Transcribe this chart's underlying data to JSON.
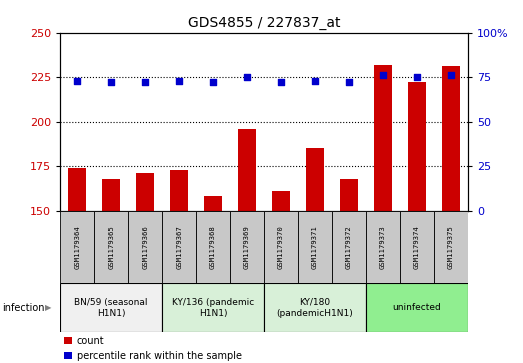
{
  "title": "GDS4855 / 227837_at",
  "samples": [
    "GSM1179364",
    "GSM1179365",
    "GSM1179366",
    "GSM1179367",
    "GSM1179368",
    "GSM1179369",
    "GSM1179370",
    "GSM1179371",
    "GSM1179372",
    "GSM1179373",
    "GSM1179374",
    "GSM1179375"
  ],
  "counts": [
    174,
    168,
    171,
    173,
    158,
    196,
    161,
    185,
    168,
    232,
    222,
    231
  ],
  "percentiles": [
    73,
    72,
    72,
    73,
    72,
    75,
    72,
    73,
    72,
    76,
    75,
    76
  ],
  "groups": [
    {
      "label": "BN/59 (seasonal\nH1N1)",
      "start": 0,
      "end": 3,
      "color": "#f0f0f0"
    },
    {
      "label": "KY/136 (pandemic\nH1N1)",
      "start": 3,
      "end": 6,
      "color": "#d8f0d8"
    },
    {
      "label": "KY/180\n(pandemicH1N1)",
      "start": 6,
      "end": 9,
      "color": "#d8f0d8"
    },
    {
      "label": "uninfected",
      "start": 9,
      "end": 12,
      "color": "#90ee90"
    }
  ],
  "ylim_left": [
    150,
    250
  ],
  "ylim_right": [
    0,
    100
  ],
  "yticks_left": [
    150,
    175,
    200,
    225,
    250
  ],
  "yticks_right": [
    0,
    25,
    50,
    75,
    100
  ],
  "bar_color": "#cc0000",
  "dot_color": "#0000cc",
  "sample_bg": "#c8c8c8",
  "infection_label": "infection"
}
